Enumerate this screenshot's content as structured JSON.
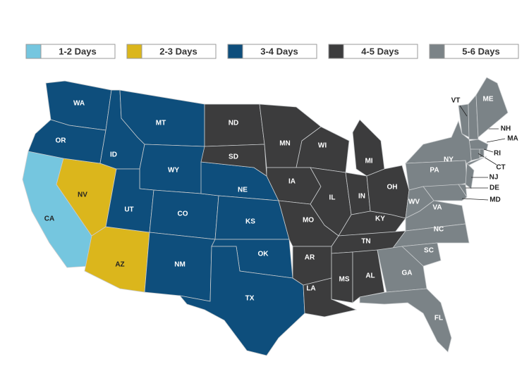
{
  "legend": [
    {
      "label": "1-2 Days",
      "color": "#75c6df",
      "states": [
        "CA"
      ]
    },
    {
      "label": "2-3 Days",
      "color": "#dbb61c",
      "states": [
        "NV",
        "AZ"
      ]
    },
    {
      "label": "3-4 Days",
      "color": "#0e4e7c",
      "states": [
        "WA",
        "OR",
        "ID",
        "MT",
        "WY",
        "UT",
        "CO",
        "NM",
        "NE",
        "KS",
        "OK",
        "TX"
      ]
    },
    {
      "label": "4-5 Days",
      "color": "#3c3c3d",
      "states": [
        "ND",
        "SD",
        "MN",
        "WI",
        "MI",
        "IA",
        "IL",
        "IN",
        "OH",
        "MO",
        "KY",
        "AR",
        "TN",
        "LA",
        "MS",
        "AL"
      ]
    },
    {
      "label": "5-6 Days",
      "color": "#7b8387",
      "states": [
        "VT",
        "NH",
        "ME",
        "MA",
        "RI",
        "CT",
        "NY",
        "PA",
        "NJ",
        "DE",
        "MD",
        "WV",
        "VA",
        "NC",
        "SC",
        "GA",
        "FL"
      ]
    }
  ]
}
